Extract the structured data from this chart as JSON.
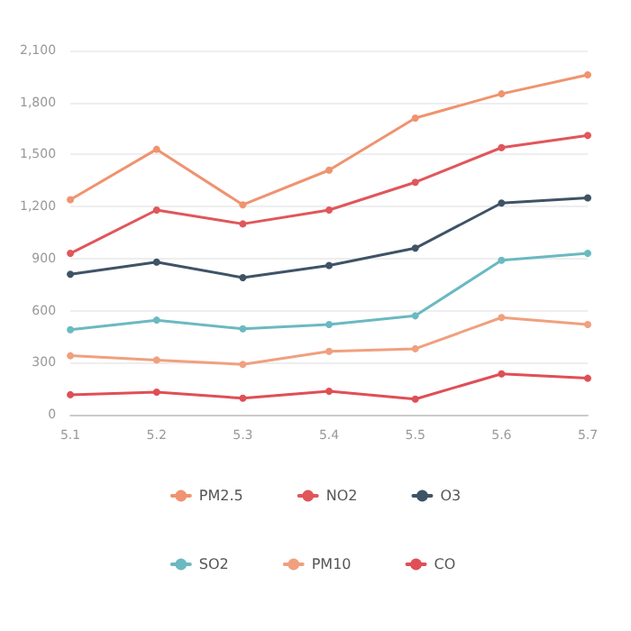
{
  "chart_data": {
    "type": "line",
    "categories": [
      "5.1",
      "5.2",
      "5.3",
      "5.4",
      "5.5",
      "5.6",
      "5.7"
    ],
    "series": [
      {
        "name": "PM2.5",
        "color": "#f0936f",
        "values": [
          1240,
          1530,
          1210,
          1410,
          1710,
          1850,
          1960
        ]
      },
      {
        "name": "NO2",
        "color": "#e0565b",
        "values": [
          930,
          1180,
          1100,
          1180,
          1340,
          1540,
          1610
        ]
      },
      {
        "name": "O3",
        "color": "#3f5366",
        "values": [
          810,
          880,
          790,
          860,
          960,
          1220,
          1250
        ]
      },
      {
        "name": "SO2",
        "color": "#6bb9c1",
        "values": [
          490,
          545,
          495,
          520,
          570,
          890,
          930
        ]
      },
      {
        "name": "PM10",
        "color": "#f0a07f",
        "values": [
          340,
          315,
          290,
          365,
          380,
          560,
          520
        ]
      },
      {
        "name": "CO",
        "color": "#df4f55",
        "values": [
          115,
          130,
          95,
          135,
          90,
          235,
          210
        ]
      }
    ],
    "ylim": [
      0,
      2100
    ],
    "yticks": [
      0,
      300,
      600,
      900,
      {
        "value": 1200,
        "label": "1,200"
      },
      {
        "value": 1500,
        "label": "1,500"
      },
      {
        "value": 1800,
        "label": "1,800"
      },
      {
        "value": 2100,
        "label": "2,100"
      }
    ],
    "grid": "y",
    "legend": "bottom",
    "marker": "circle",
    "line_style": "solid"
  }
}
